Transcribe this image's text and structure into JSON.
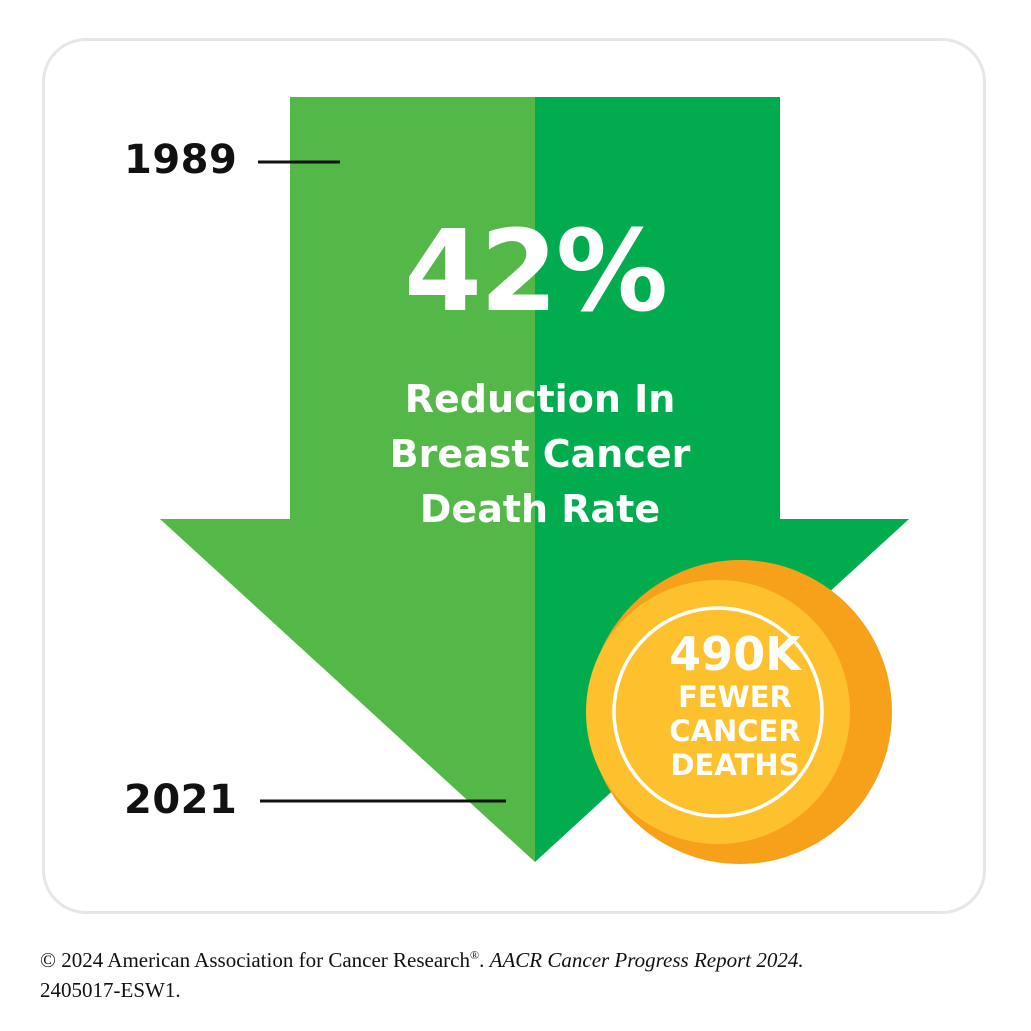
{
  "timeline": {
    "start_year": "1989",
    "end_year": "2021"
  },
  "stat": {
    "percent": "42%",
    "headline_lines": [
      "Reduction In",
      "Breast Cancer",
      "Death Rate"
    ]
  },
  "badge": {
    "number": "490K",
    "lines": [
      "FEWER",
      "CANCER",
      "DEATHS"
    ]
  },
  "footer": {
    "copyright": "© 2024 American Association for Cancer Research",
    "registered": "®",
    "period": ". ",
    "report": "AACR Cancer Progress Report 2024.",
    "code": "2405017-ESW1."
  },
  "colors": {
    "arrow_left": "#54b848",
    "arrow_right": "#00ac4e",
    "badge_outer": "#f7a11a",
    "badge_inner": "#fdc12e",
    "text_dark": "#111111"
  }
}
